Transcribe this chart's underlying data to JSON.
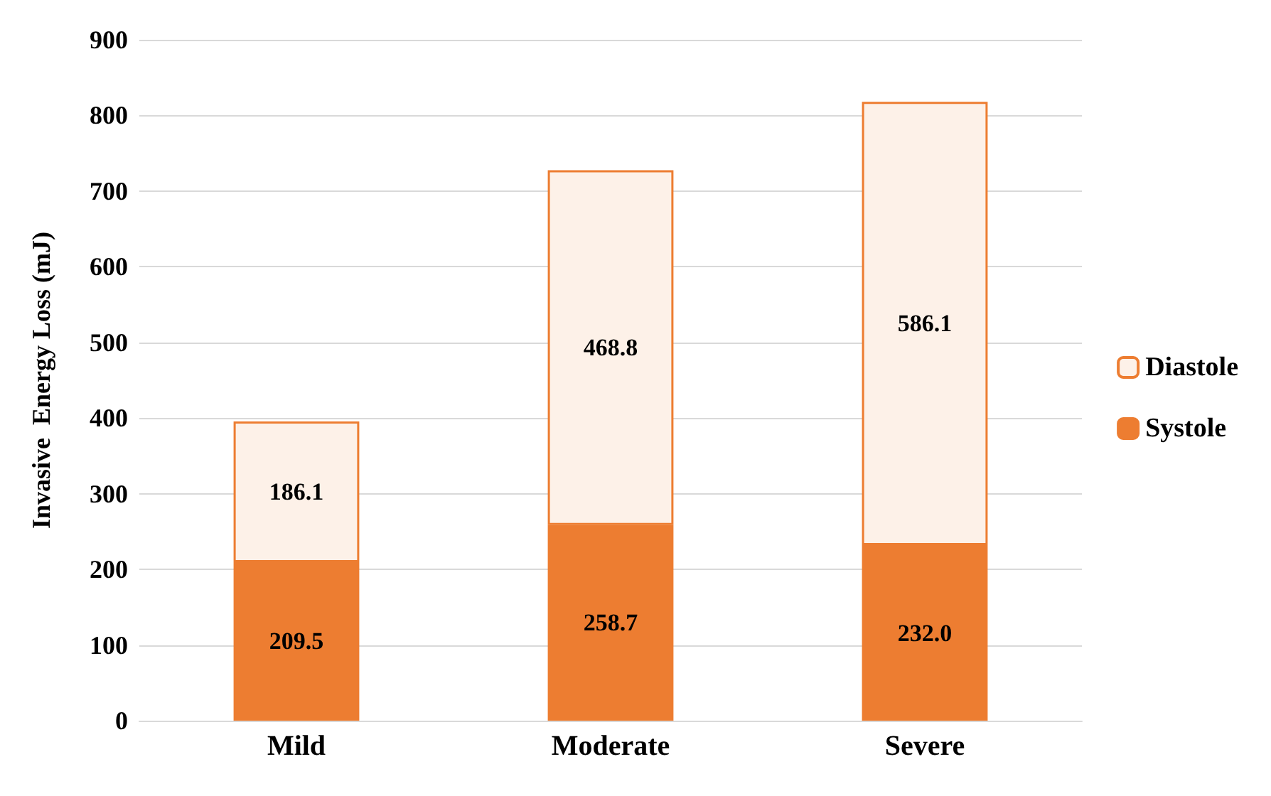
{
  "chart_data": {
    "type": "bar",
    "ylabel": "Invasive  Energy Loss (mJ)",
    "categories": [
      "Mild",
      "Moderate",
      "Severe"
    ],
    "series": [
      {
        "name": "Systole",
        "color": "#ed7d31",
        "values": [
          209.5,
          258.7,
          232.0
        ],
        "value_labels": [
          "209.5",
          "258.7",
          "232.0"
        ]
      },
      {
        "name": "Diastole",
        "color": "#fdf1e8",
        "values": [
          186.1,
          468.8,
          586.1
        ],
        "value_labels": [
          "186.1",
          "468.8",
          "586.1"
        ]
      }
    ],
    "stacked": true,
    "ylim": [
      0,
      900
    ],
    "yticks": [
      0,
      100,
      200,
      300,
      400,
      500,
      600,
      700,
      800,
      900
    ],
    "grid": "y",
    "legend": "right"
  }
}
